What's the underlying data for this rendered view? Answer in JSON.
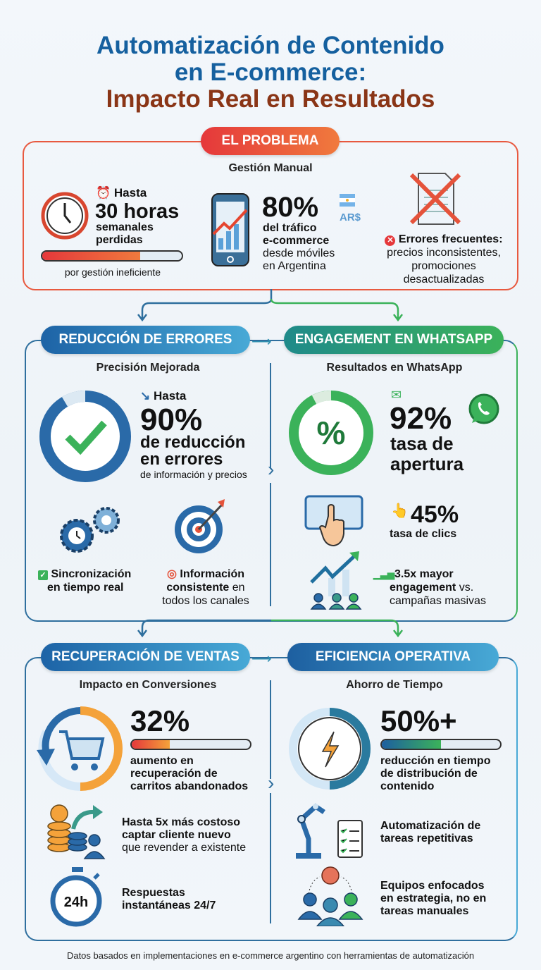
{
  "title": {
    "line1": "Automatización de Contenido",
    "line2": "en E-commerce:",
    "line3": "Impacto Real en Resultados"
  },
  "problem": {
    "pill": "EL PROBLEMA",
    "subtitle": "Gestión Manual",
    "hours": {
      "prefix": "Hasta",
      "value": "30 horas",
      "line1": "semanales",
      "line2": "perdidas",
      "caption": "por gestión ineficiente",
      "bar_fill_pct": 70
    },
    "mobile": {
      "value": "80%",
      "currency": "AR$",
      "line1": "del tráfico",
      "line2": "e-commerce",
      "line3": "desde móviles",
      "line4": "en Argentina"
    },
    "errors": {
      "line1": "Errores frecuentes:",
      "line2": "precios inconsistentes,",
      "line3": "promociones",
      "line4": "desactualizadas"
    }
  },
  "errors_section": {
    "pill": "REDUCCIÓN DE ERRORES",
    "subtitle": "Precisión Mejorada",
    "prefix": "Hasta",
    "value": "90%",
    "line1": "de reducción",
    "line2": "en errores",
    "line3": "de información y precios",
    "sync": {
      "line1": "Sincronización",
      "line2": "en tiempo real"
    },
    "consistent": {
      "line1": "Información",
      "line2a": "consistente",
      "line2b": " en",
      "line3": "todos los canales"
    }
  },
  "whatsapp": {
    "pill": "ENGAGEMENT EN WHATSAPP",
    "subtitle": "Resultados en WhatsApp",
    "value": "92%",
    "line1": "tasa de",
    "line2": "apertura",
    "clicks": {
      "value": "45%",
      "label": "tasa de clics"
    },
    "engagement": {
      "line1": "3.5x mayor",
      "line2a": "engagement",
      "line2b": " vs.",
      "line3": "campañas masivas"
    }
  },
  "sales": {
    "pill": "RECUPERACIÓN DE VENTAS",
    "subtitle": "Impacto en Conversiones",
    "value": "32%",
    "bar_fill_pct": 32,
    "line1": "aumento en",
    "line2": "recuperación de",
    "line3": "carritos abandonados",
    "cost": {
      "line1": "Hasta 5x más costoso",
      "line2": "captar cliente nuevo",
      "line3": "que revender a existente"
    },
    "response": {
      "badge": "24h",
      "line1": "Respuestas",
      "line2": "instantáneas 24/7"
    }
  },
  "efficiency": {
    "pill": "EFICIENCIA OPERATIVA",
    "subtitle": "Ahorro de Tiempo",
    "value": "50%+",
    "bar_fill_pct": 50,
    "line1": "reducción en tiempo",
    "line2": "de distribución de",
    "line3": "contenido",
    "auto": {
      "line1": "Automatización de",
      "line2": "tareas repetitivas"
    },
    "teams": {
      "line1": "Equipos enfocados",
      "line2": "en estrategia, no en",
      "line3": "tareas manuales"
    }
  },
  "footer": "Datos basados en implementaciones en e-commerce argentino con herramientas de automatización",
  "colors": {
    "blue": "#15609f",
    "brown": "#8a3516",
    "orange": "#e8503a",
    "green": "#3bb25a"
  }
}
